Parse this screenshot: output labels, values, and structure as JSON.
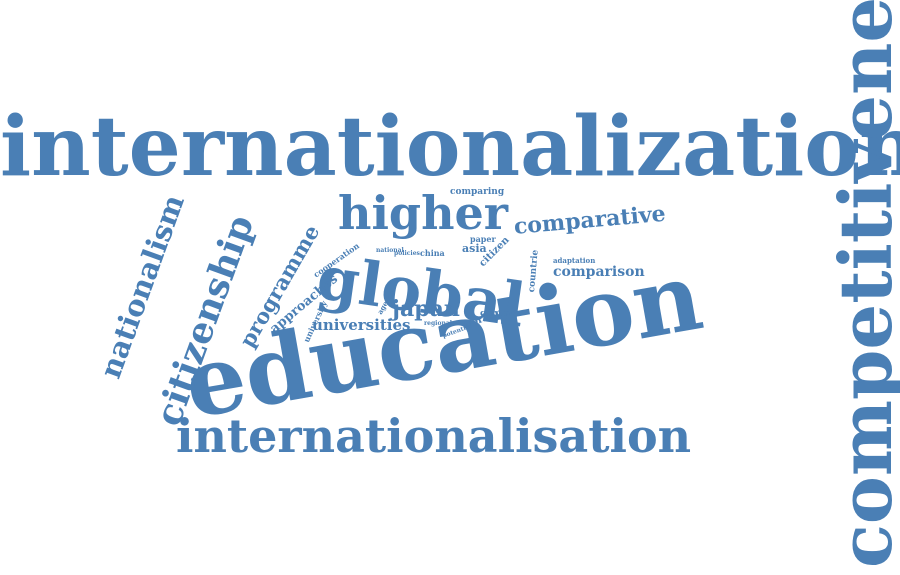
{
  "theme": {
    "word_color": "#4a7fb5",
    "background": "#ffffff"
  },
  "words": {
    "internationalization": "internationalization",
    "competitiveness": "competitiveness",
    "education": "education",
    "global": "global",
    "higher": "higher",
    "internationalisation": "internationalisation",
    "citizenship": "citizenship",
    "nationalism": "nationalism",
    "programme": "programme",
    "comparative": "comparative",
    "japan": "japan",
    "comparison": "comparison",
    "universities": "universities",
    "approaches": "approaches",
    "comparing": "comparing",
    "cooperation": "cooperation",
    "university": "university",
    "countrie": "countrie",
    "citizen": "citizen",
    "asia": "asia",
    "china": "china",
    "paper": "paper",
    "worker": "worker",
    "context": "context",
    "adaptation": "adaptation",
    "agenda": "agenda",
    "national": "national",
    "policies": "policies",
    "regional": "regional",
    "potential": "potential"
  }
}
